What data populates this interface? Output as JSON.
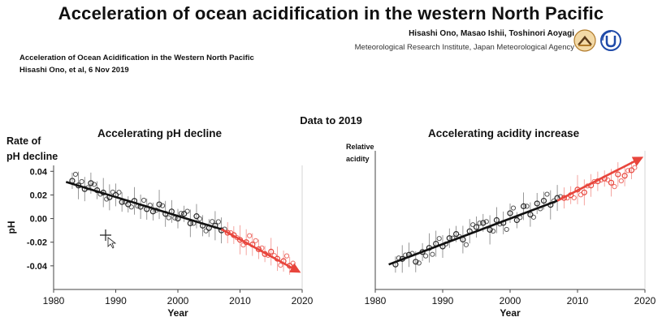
{
  "header": {
    "title": "Acceleration of ocean acidification in the western North Pacific",
    "authors": "Hisashi Ono, Masao Ishii, Toshinori Aoyagi",
    "affiliation": "Meteorological Research Institute,    Japan Meteorological Agency",
    "subtitle_line1": "Acceleration of Ocean Acidification in the Western North Pacific",
    "subtitle_line2": "Hisashi Ono, et al, 6 Nov 2019"
  },
  "data_note": "Data to 2019",
  "left_panel": {
    "title": "Accelerating pH decline",
    "side_label_line1": "Rate of",
    "side_label_line2": "pH decline"
  },
  "right_panel": {
    "title": "Accelerating acidity increase",
    "side_label_line1": "Relative",
    "side_label_line2": "acidity"
  },
  "colors": {
    "early_data": "#2b2b2b",
    "recent_data": "#e8453c",
    "trend_arrow": "#e8453c",
    "trend_line": "#111111"
  },
  "chart_data": [
    {
      "type": "scatter",
      "title": "Accelerating pH decline",
      "xlabel": "Year",
      "ylabel": "pH",
      "xlim": [
        1980,
        2020
      ],
      "ylim": [
        -0.06,
        0.045
      ],
      "x_ticks": [
        1980,
        1990,
        2000,
        2010,
        2020
      ],
      "y_ticks": [
        0.04,
        0.02,
        0.0,
        -0.02,
        -0.04
      ],
      "y_tick_labels": [
        "0.04",
        "0.02",
        "0.00",
        "-0.02",
        "-0.04"
      ],
      "grid": false,
      "series": [
        {
          "color": "#2b2b2b",
          "x": [
            1983,
            1984,
            1985,
            1986,
            1987,
            1988,
            1989,
            1990,
            1991,
            1992,
            1993,
            1994,
            1995,
            1996,
            1997,
            1998,
            1999,
            2000,
            2001,
            2002,
            2003,
            2004,
            2005,
            2006,
            2007
          ],
          "y": [
            0.032,
            0.028,
            0.025,
            0.03,
            0.024,
            0.022,
            0.018,
            0.02,
            0.014,
            0.012,
            0.015,
            0.01,
            0.008,
            0.006,
            0.012,
            0.004,
            0.006,
            0.0,
            0.004,
            -0.004,
            0.002,
            -0.006,
            -0.008,
            -0.006,
            -0.01
          ]
        },
        {
          "color": "#e8453c",
          "x": [
            2008,
            2009,
            2010,
            2011,
            2012,
            2013,
            2014,
            2015,
            2016,
            2017,
            2018
          ],
          "y": [
            -0.012,
            -0.014,
            -0.018,
            -0.02,
            -0.022,
            -0.026,
            -0.03,
            -0.028,
            -0.034,
            -0.036,
            -0.04
          ]
        }
      ],
      "trend": {
        "start": [
          1982,
          0.031
        ],
        "bend": [
          2007,
          -0.009
        ],
        "end": [
          2019.5,
          -0.045
        ]
      }
    },
    {
      "type": "scatter",
      "title": "Accelerating acidity increase",
      "xlabel": "Year",
      "ylabel": "",
      "xlim": [
        1980,
        2020
      ],
      "ylim": [
        0,
        1
      ],
      "x_ticks": [
        1980,
        1990,
        2000,
        2010,
        2020
      ],
      "y_ticks": [],
      "grid": false,
      "series": [
        {
          "color": "#2b2b2b",
          "x": [
            1983,
            1984,
            1985,
            1986,
            1987,
            1988,
            1989,
            1990,
            1991,
            1992,
            1993,
            1994,
            1995,
            1996,
            1997,
            1998,
            1999,
            2000,
            2001,
            2002,
            2003,
            2004,
            2005,
            2006,
            2007
          ],
          "y": [
            0.18,
            0.22,
            0.25,
            0.2,
            0.27,
            0.3,
            0.33,
            0.31,
            0.37,
            0.4,
            0.36,
            0.42,
            0.45,
            0.48,
            0.43,
            0.5,
            0.48,
            0.55,
            0.5,
            0.6,
            0.54,
            0.62,
            0.64,
            0.61,
            0.66
          ]
        },
        {
          "color": "#e8453c",
          "x": [
            2008,
            2009,
            2010,
            2011,
            2012,
            2013,
            2014,
            2015,
            2016,
            2017,
            2018
          ],
          "y": [
            0.66,
            0.68,
            0.72,
            0.7,
            0.75,
            0.78,
            0.8,
            0.77,
            0.83,
            0.82,
            0.86
          ]
        }
      ],
      "trend": {
        "start": [
          1982,
          0.18
        ],
        "bend": [
          2007,
          0.64
        ],
        "end": [
          2019.5,
          0.95
        ]
      }
    }
  ]
}
